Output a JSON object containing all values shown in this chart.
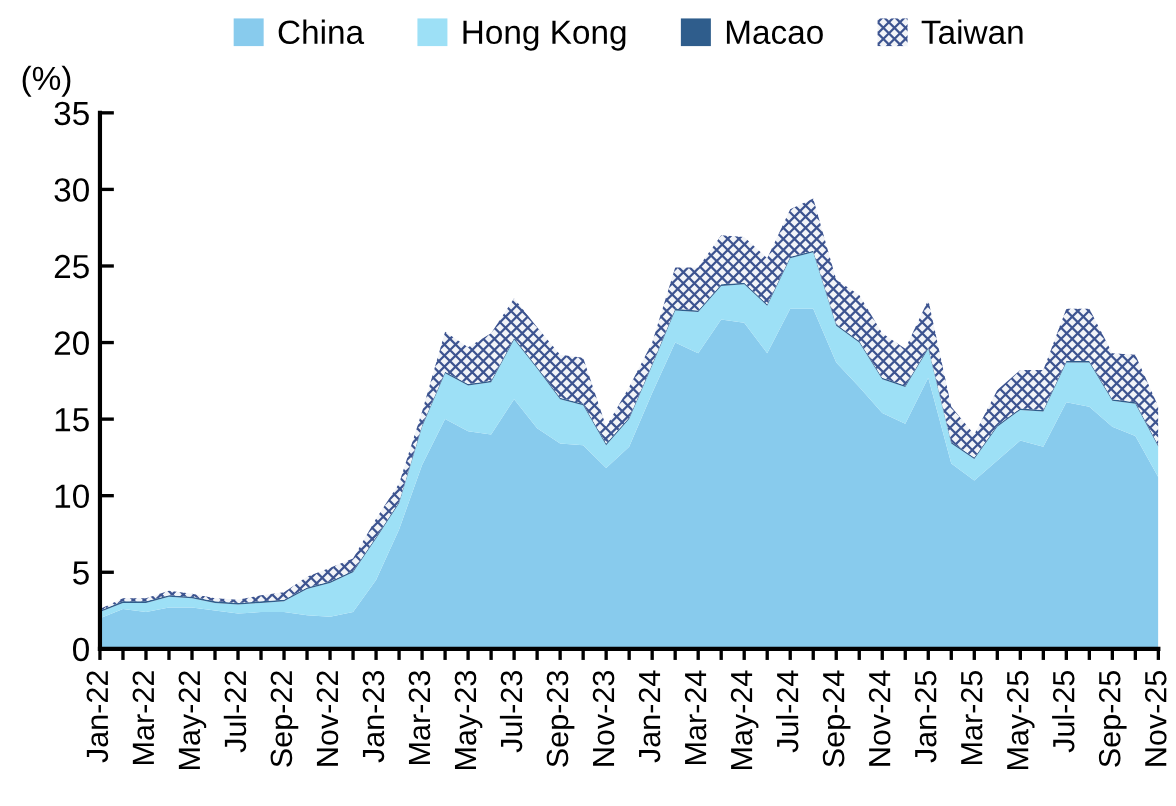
{
  "chart_data": {
    "type": "area",
    "stacked": true,
    "ylabel": "(%)",
    "categories": [
      "Jan-22",
      null,
      "Mar-22",
      null,
      "May-22",
      null,
      "Jul-22",
      null,
      "Sep-22",
      null,
      "Nov-22",
      null,
      "Jan-23",
      null,
      "Mar-23",
      null,
      "May-23",
      null,
      "Jul-23",
      null,
      "Sep-23",
      null,
      "Nov-23",
      null,
      "Jan-24",
      null,
      "Mar-24",
      null,
      "May-24",
      null,
      "Jul-24",
      null,
      "Sep-24",
      null,
      "Nov-24",
      null,
      "Jan-25",
      null,
      "Mar-25",
      null,
      "May-25",
      null,
      "Jul-25",
      null,
      "Sep-25",
      null,
      "Nov-25"
    ],
    "series": [
      {
        "name": "China",
        "color": "#88cbed",
        "values": [
          2.0,
          2.6,
          2.4,
          2.7,
          2.7,
          2.5,
          2.3,
          2.4,
          2.4,
          2.2,
          2.1,
          2.4,
          4.5,
          7.8,
          12.0,
          15.0,
          14.2,
          14.0,
          16.3,
          14.4,
          13.4,
          13.3,
          11.8,
          13.2,
          16.7,
          20.0,
          19.3,
          21.5,
          21.3,
          19.3,
          22.2,
          22.2,
          18.7,
          17.1,
          15.4,
          14.7,
          17.7,
          12.1,
          11.0,
          12.3,
          13.6,
          13.2,
          16.1,
          15.8,
          14.5,
          13.9,
          11.2
        ]
      },
      {
        "name": "Hong Kong",
        "color": "#9de0f6",
        "values": [
          0.4,
          0.4,
          0.6,
          0.7,
          0.6,
          0.5,
          0.6,
          0.6,
          0.7,
          1.7,
          2.2,
          2.6,
          2.7,
          1.7,
          2.5,
          3.0,
          3.0,
          3.4,
          3.9,
          3.9,
          2.9,
          2.6,
          1.5,
          1.8,
          1.8,
          2.1,
          2.7,
          2.2,
          2.5,
          3.1,
          3.3,
          3.7,
          2.4,
          2.9,
          2.2,
          2.4,
          1.9,
          1.3,
          1.4,
          2.2,
          2.0,
          2.3,
          2.6,
          2.9,
          1.7,
          2.1,
          2.0
        ]
      },
      {
        "name": "Macao",
        "color": "#2f5d8c",
        "values": [
          0.1,
          0.1,
          0.1,
          0.1,
          0.1,
          0.1,
          0.1,
          0.1,
          0.1,
          0.1,
          0.1,
          0.1,
          0.1,
          0.1,
          0.1,
          0.1,
          0.1,
          0.1,
          0.1,
          0.1,
          0.1,
          0.1,
          0.1,
          0.1,
          0.1,
          0.1,
          0.1,
          0.1,
          0.1,
          0.1,
          0.1,
          0.1,
          0.1,
          0.1,
          0.1,
          0.1,
          0.1,
          0.1,
          0.1,
          0.1,
          0.1,
          0.1,
          0.1,
          0.1,
          0.1,
          0.1,
          0.1
        ]
      },
      {
        "name": "Taiwan",
        "color": "#3d5490",
        "values": [
          0.1,
          0.2,
          0.2,
          0.3,
          0.2,
          0.2,
          0.2,
          0.4,
          0.5,
          0.7,
          0.9,
          0.8,
          1.2,
          1.2,
          0.9,
          2.6,
          2.4,
          3.1,
          2.6,
          2.6,
          2.8,
          3.0,
          1.1,
          2.0,
          1.4,
          2.7,
          2.8,
          3.2,
          3.0,
          3.0,
          3.1,
          3.4,
          2.9,
          3.0,
          2.9,
          2.4,
          3.1,
          2.3,
          1.5,
          2.3,
          2.5,
          2.6,
          3.4,
          3.4,
          3.0,
          3.1,
          2.5
        ]
      }
    ],
    "ylim": [
      0,
      35
    ],
    "yticks": [
      0,
      5,
      10,
      15,
      20,
      25,
      30,
      35
    ],
    "grid": false,
    "legend": "top"
  }
}
